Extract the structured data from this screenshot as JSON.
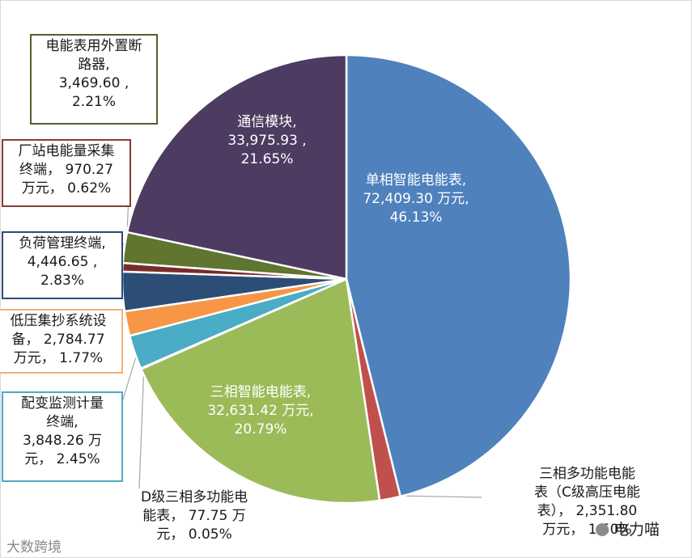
{
  "chart_data": {
    "type": "pie",
    "slices": [
      {
        "name": "单相智能电能表",
        "value": 72409.3,
        "percent": "46.13%",
        "label": [
          "单相智能电能表,",
          "72,409.30 万元,",
          "46.13%"
        ],
        "color": "#4f81bd",
        "border": ""
      },
      {
        "name": "三相多功能电能表（C级高压电能表）",
        "value": 2351.8,
        "percent": "1.50%",
        "label": [
          "三相多功能电能",
          "表（C级高压电能",
          "表）， 2,351.80",
          "万元， 1.50%"
        ],
        "color": "#c0504d",
        "border": ""
      },
      {
        "name": "三相智能电能表",
        "value": 32631.42,
        "percent": "20.79%",
        "label": [
          "三相智能电能表,",
          "32,631.42 万元,",
          "20.79%"
        ],
        "color": "#9bbb59",
        "border": ""
      },
      {
        "name": "D级三相多功能电能表",
        "value": 77.75,
        "percent": "0.05%",
        "label": [
          "D级三相多功能电",
          "能表， 77.75 万",
          "元， 0.05%"
        ],
        "color": "#8064a2",
        "border": ""
      },
      {
        "name": "配变监测计量终端",
        "value": 3848.26,
        "percent": "2.45%",
        "label": [
          "配变监测计量",
          "终端,",
          "3,848.26 万",
          "元， 2.45%"
        ],
        "color": "#4bacc6",
        "border": "#4bacc6"
      },
      {
        "name": "低压集抄系统设备",
        "value": 2784.77,
        "percent": "1.77%",
        "label": [
          "低压集抄系统设",
          "备， 2,784.77",
          "万元， 1.77%"
        ],
        "color": "#f79646",
        "border": "#f5b07a"
      },
      {
        "name": "负荷管理终端",
        "value": 4446.65,
        "percent": "2.83%",
        "label": [
          "负荷管理终端,",
          "4,446.65 ,",
          "2.83%"
        ],
        "color": "#2c4d75",
        "border": "#2c4d75"
      },
      {
        "name": "厂站电能量采集终端",
        "value": 970.27,
        "percent": "0.62%",
        "label": [
          "厂站电能量采集",
          "终端， 970.27",
          "万元， 0.62%"
        ],
        "color": "#772c2a",
        "border": "#8b3a3a"
      },
      {
        "name": "电能表用外置断路器",
        "value": 3469.6,
        "percent": "2.21%",
        "label": [
          "电能表用外置断",
          "路器,",
          "3,469.60 ,",
          "2.21%"
        ],
        "color": "#5f7530",
        "border": "#4f6228"
      },
      {
        "name": "通信模块",
        "value": 33975.93,
        "percent": "21.65%",
        "label": [
          "通信模块,",
          "33,975.93 ,",
          "21.65%"
        ],
        "color": "#4d3b62",
        "border": ""
      }
    ]
  },
  "watermark": {
    "left": "大数跨境",
    "right": "电力喵"
  }
}
